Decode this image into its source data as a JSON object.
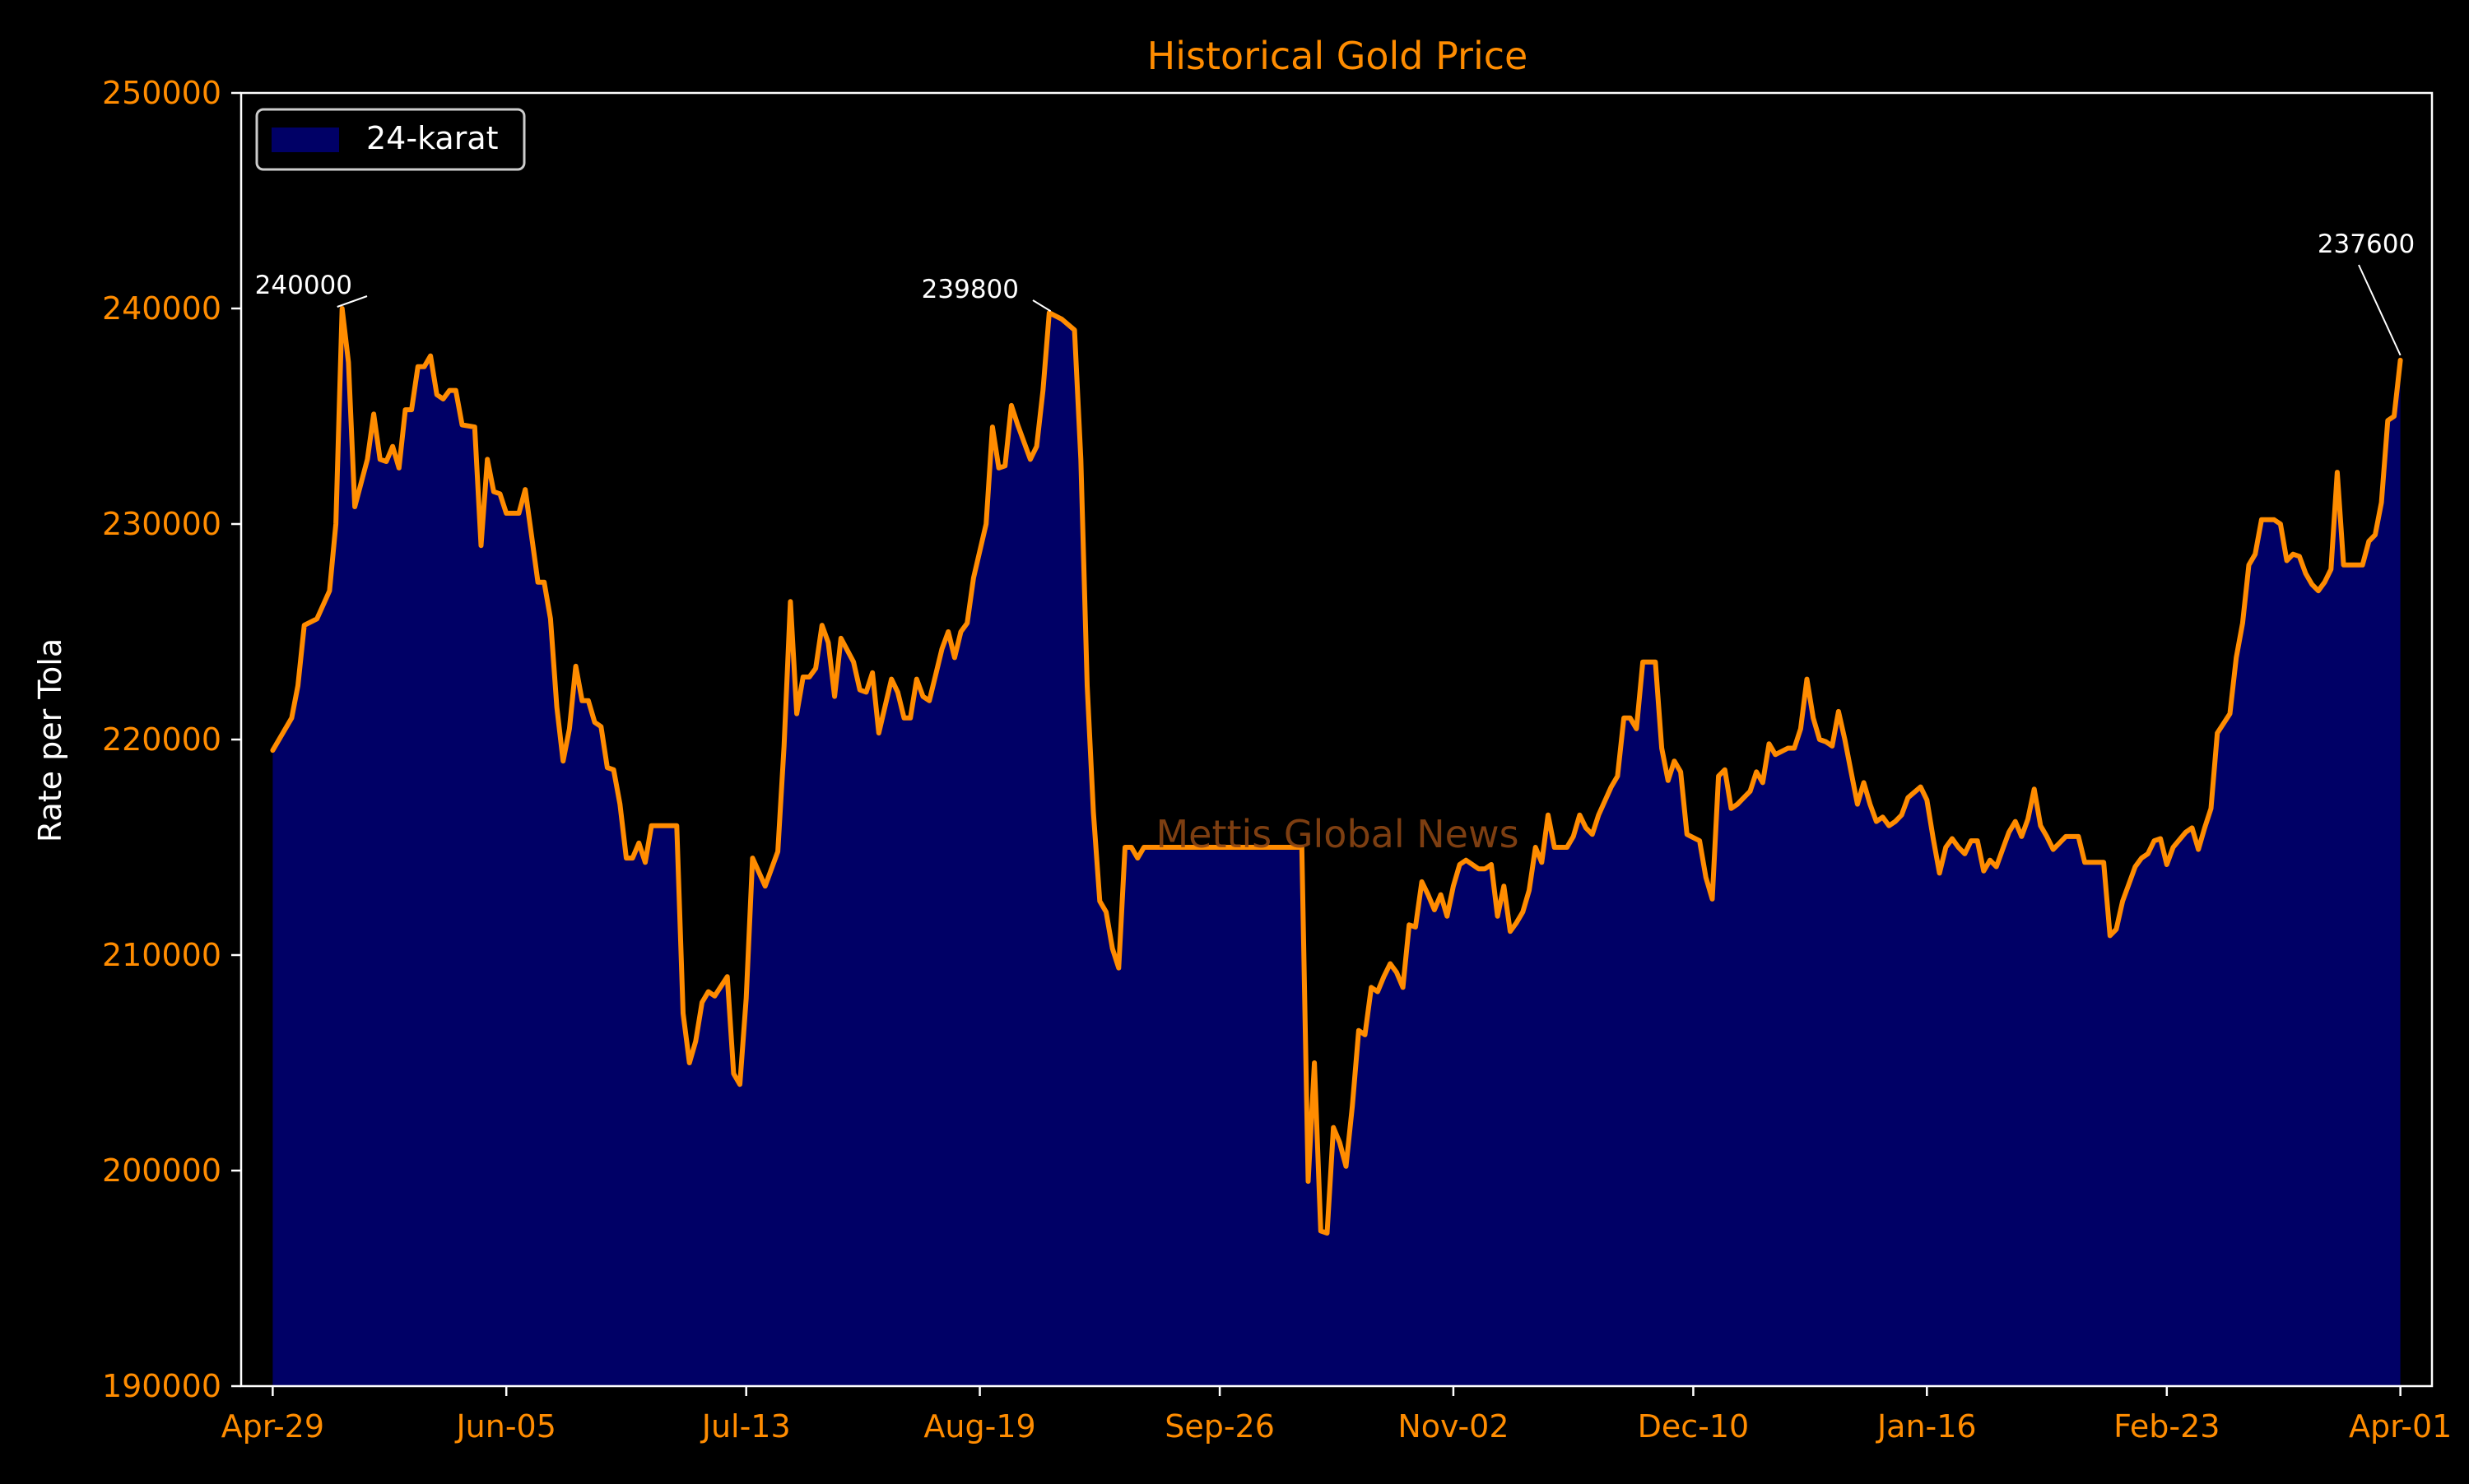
{
  "chart_data": {
    "type": "area",
    "title": "Historical Gold Price",
    "xlabel": "",
    "ylabel": "Rate per Tola",
    "watermark": "Mettis Global News",
    "ylim": [
      190000,
      250000
    ],
    "yticks": [
      190000,
      200000,
      210000,
      220000,
      230000,
      240000,
      250000
    ],
    "ytick_labels": [
      "190000",
      "200000",
      "210000",
      "220000",
      "230000",
      "240000",
      "250000"
    ],
    "xlim_days": [
      -5,
      342
    ],
    "xticks": [
      {
        "label": "Apr-29",
        "day": 0
      },
      {
        "label": "Jun-05",
        "day": 37
      },
      {
        "label": "Jul-13",
        "day": 75
      },
      {
        "label": "Aug-19",
        "day": 112
      },
      {
        "label": "Sep-26",
        "day": 150
      },
      {
        "label": "Nov-02",
        "day": 187
      },
      {
        "label": "Dec-10",
        "day": 225
      },
      {
        "label": "Jan-16",
        "day": 262
      },
      {
        "label": "Feb-23",
        "day": 300
      },
      {
        "label": "Apr-01",
        "day": 337
      }
    ],
    "legend": {
      "position": "top-left",
      "entries": [
        "24-karat"
      ]
    },
    "grid": false,
    "colors": {
      "line": "#FF8C00",
      "fill": "#000066",
      "text": "#FF8C00",
      "label_text": "#FFFFFF",
      "axes": "#FFFFFF",
      "background": "#000000",
      "watermark": "#8B4513"
    },
    "annotations": [
      {
        "text": "240000",
        "day": 11,
        "value": 240000
      },
      {
        "text": "239800",
        "day": 124,
        "value": 239800
      },
      {
        "text": "237600",
        "day": 337,
        "value": 237600
      }
    ],
    "series": [
      {
        "name": "24-karat",
        "points": [
          [
            0,
            219500
          ],
          [
            3,
            221000
          ],
          [
            4,
            222500
          ],
          [
            5,
            225300
          ],
          [
            7,
            225600
          ],
          [
            9,
            226900
          ],
          [
            10,
            230000
          ],
          [
            11,
            240000
          ],
          [
            12,
            237500
          ],
          [
            13,
            230800
          ],
          [
            15,
            233000
          ],
          [
            16,
            235100
          ],
          [
            17,
            233000
          ],
          [
            18,
            232900
          ],
          [
            19,
            233600
          ],
          [
            20,
            232600
          ],
          [
            21,
            235300
          ],
          [
            22,
            235300
          ],
          [
            23,
            237300
          ],
          [
            24,
            237300
          ],
          [
            25,
            237800
          ],
          [
            26,
            236000
          ],
          [
            27,
            235800
          ],
          [
            28,
            236200
          ],
          [
            29,
            236200
          ],
          [
            30,
            234600
          ],
          [
            32,
            234500
          ],
          [
            33,
            229000
          ],
          [
            34,
            233000
          ],
          [
            35,
            231500
          ],
          [
            36,
            231400
          ],
          [
            37,
            230500
          ],
          [
            39,
            230500
          ],
          [
            40,
            231600
          ],
          [
            42,
            227300
          ],
          [
            43,
            227300
          ],
          [
            44,
            225600
          ],
          [
            45,
            221500
          ],
          [
            46,
            219000
          ],
          [
            47,
            220500
          ],
          [
            48,
            223400
          ],
          [
            49,
            221800
          ],
          [
            50,
            221800
          ],
          [
            51,
            220800
          ],
          [
            52,
            220600
          ],
          [
            53,
            218700
          ],
          [
            54,
            218600
          ],
          [
            55,
            217000
          ],
          [
            56,
            214500
          ],
          [
            57,
            214500
          ],
          [
            58,
            215200
          ],
          [
            59,
            214300
          ],
          [
            60,
            216000
          ],
          [
            64,
            216000
          ],
          [
            65,
            207300
          ],
          [
            66,
            205000
          ],
          [
            67,
            206000
          ],
          [
            68,
            207800
          ],
          [
            69,
            208300
          ],
          [
            70,
            208100
          ],
          [
            72,
            209000
          ],
          [
            73,
            204500
          ],
          [
            74,
            204000
          ],
          [
            75,
            208000
          ],
          [
            76,
            214500
          ],
          [
            78,
            213200
          ],
          [
            80,
            214800
          ],
          [
            81,
            219700
          ],
          [
            82,
            226400
          ],
          [
            83,
            221200
          ],
          [
            84,
            222900
          ],
          [
            85,
            222900
          ],
          [
            86,
            223300
          ],
          [
            87,
            225300
          ],
          [
            88,
            224500
          ],
          [
            89,
            222000
          ],
          [
            90,
            224700
          ],
          [
            92,
            223600
          ],
          [
            93,
            222300
          ],
          [
            94,
            222200
          ],
          [
            95,
            223100
          ],
          [
            96,
            220300
          ],
          [
            98,
            222800
          ],
          [
            99,
            222200
          ],
          [
            100,
            221000
          ],
          [
            101,
            221000
          ],
          [
            102,
            222800
          ],
          [
            103,
            222000
          ],
          [
            104,
            221800
          ],
          [
            105,
            223000
          ],
          [
            106,
            224200
          ],
          [
            107,
            225000
          ],
          [
            108,
            223800
          ],
          [
            109,
            225000
          ],
          [
            110,
            225400
          ],
          [
            111,
            227500
          ],
          [
            113,
            230000
          ],
          [
            114,
            234500
          ],
          [
            115,
            232600
          ],
          [
            116,
            232700
          ],
          [
            117,
            235500
          ],
          [
            118,
            234600
          ],
          [
            120,
            233000
          ],
          [
            121,
            233600
          ],
          [
            122,
            236200
          ],
          [
            123,
            239800
          ],
          [
            125,
            239500
          ],
          [
            127,
            239000
          ],
          [
            128,
            233000
          ],
          [
            129,
            222500
          ],
          [
            130,
            216600
          ],
          [
            131,
            212500
          ],
          [
            132,
            212000
          ],
          [
            133,
            210300
          ],
          [
            134,
            209400
          ],
          [
            135,
            215000
          ],
          [
            136,
            215000
          ],
          [
            137,
            214500
          ],
          [
            138,
            215000
          ],
          [
            150,
            215000
          ],
          [
            163,
            215000
          ],
          [
            164,
            199500
          ],
          [
            165,
            205000
          ],
          [
            166,
            197200
          ],
          [
            167,
            197100
          ],
          [
            168,
            202000
          ],
          [
            169,
            201300
          ],
          [
            170,
            200200
          ],
          [
            171,
            203000
          ],
          [
            172,
            206500
          ],
          [
            173,
            206300
          ],
          [
            174,
            208500
          ],
          [
            175,
            208300
          ],
          [
            176,
            209000
          ],
          [
            177,
            209600
          ],
          [
            178,
            209200
          ],
          [
            179,
            208500
          ],
          [
            180,
            211400
          ],
          [
            181,
            211300
          ],
          [
            182,
            213400
          ],
          [
            183,
            212800
          ],
          [
            184,
            212100
          ],
          [
            185,
            212800
          ],
          [
            186,
            211800
          ],
          [
            187,
            213200
          ],
          [
            188,
            214200
          ],
          [
            189,
            214400
          ],
          [
            191,
            214000
          ],
          [
            192,
            214000
          ],
          [
            193,
            214200
          ],
          [
            194,
            211800
          ],
          [
            195,
            213200
          ],
          [
            196,
            211100
          ],
          [
            197,
            211500
          ],
          [
            198,
            212000
          ],
          [
            199,
            213000
          ],
          [
            200,
            215000
          ],
          [
            201,
            214300
          ],
          [
            202,
            216500
          ],
          [
            203,
            215000
          ],
          [
            205,
            215000
          ],
          [
            206,
            215500
          ],
          [
            207,
            216500
          ],
          [
            208,
            215900
          ],
          [
            209,
            215600
          ],
          [
            210,
            216500
          ],
          [
            212,
            217800
          ],
          [
            213,
            218300
          ],
          [
            214,
            221000
          ],
          [
            215,
            221000
          ],
          [
            216,
            220500
          ],
          [
            217,
            223600
          ],
          [
            219,
            223600
          ],
          [
            220,
            219600
          ],
          [
            221,
            218100
          ],
          [
            222,
            219000
          ],
          [
            223,
            218500
          ],
          [
            224,
            215600
          ],
          [
            226,
            215300
          ],
          [
            227,
            213600
          ],
          [
            228,
            212600
          ],
          [
            229,
            218300
          ],
          [
            230,
            218600
          ],
          [
            231,
            216800
          ],
          [
            232,
            217000
          ],
          [
            233,
            217300
          ],
          [
            234,
            217600
          ],
          [
            235,
            218500
          ],
          [
            236,
            218000
          ],
          [
            237,
            219800
          ],
          [
            238,
            219300
          ],
          [
            240,
            219600
          ],
          [
            241,
            219600
          ],
          [
            242,
            220500
          ],
          [
            243,
            222800
          ],
          [
            244,
            221000
          ],
          [
            245,
            220000
          ],
          [
            246,
            219900
          ],
          [
            247,
            219700
          ],
          [
            248,
            221300
          ],
          [
            249,
            220000
          ],
          [
            250,
            218500
          ],
          [
            251,
            217000
          ],
          [
            252,
            218000
          ],
          [
            253,
            217000
          ],
          [
            254,
            216200
          ],
          [
            255,
            216400
          ],
          [
            256,
            216000
          ],
          [
            257,
            216200
          ],
          [
            258,
            216500
          ],
          [
            259,
            217300
          ],
          [
            261,
            217800
          ],
          [
            262,
            217200
          ],
          [
            263,
            215400
          ],
          [
            264,
            213800
          ],
          [
            265,
            215000
          ],
          [
            266,
            215400
          ],
          [
            267,
            215000
          ],
          [
            268,
            214700
          ],
          [
            269,
            215300
          ],
          [
            270,
            215300
          ],
          [
            271,
            213900
          ],
          [
            272,
            214400
          ],
          [
            273,
            214100
          ],
          [
            274,
            214900
          ],
          [
            275,
            215700
          ],
          [
            276,
            216200
          ],
          [
            277,
            215500
          ],
          [
            278,
            216300
          ],
          [
            279,
            217700
          ],
          [
            280,
            216000
          ],
          [
            281,
            215500
          ],
          [
            282,
            214900
          ],
          [
            283,
            215200
          ],
          [
            284,
            215500
          ],
          [
            285,
            215500
          ],
          [
            286,
            215500
          ],
          [
            287,
            214300
          ],
          [
            290,
            214300
          ],
          [
            291,
            210900
          ],
          [
            292,
            211200
          ],
          [
            293,
            212500
          ],
          [
            294,
            213300
          ],
          [
            295,
            214100
          ],
          [
            296,
            214500
          ],
          [
            297,
            214700
          ],
          [
            298,
            215300
          ],
          [
            299,
            215400
          ],
          [
            300,
            214200
          ],
          [
            301,
            215000
          ],
          [
            303,
            215700
          ],
          [
            304,
            215900
          ],
          [
            305,
            214900
          ],
          [
            306,
            215900
          ],
          [
            307,
            216800
          ],
          [
            308,
            220300
          ],
          [
            310,
            221200
          ],
          [
            311,
            223800
          ],
          [
            312,
            225400
          ],
          [
            313,
            228100
          ],
          [
            314,
            228600
          ],
          [
            315,
            230200
          ],
          [
            317,
            230200
          ],
          [
            318,
            230000
          ],
          [
            319,
            228300
          ],
          [
            320,
            228600
          ],
          [
            321,
            228500
          ],
          [
            322,
            227700
          ],
          [
            323,
            227200
          ],
          [
            324,
            226900
          ],
          [
            325,
            227300
          ],
          [
            326,
            227900
          ],
          [
            327,
            232400
          ],
          [
            328,
            228100
          ],
          [
            331,
            228100
          ],
          [
            332,
            229200
          ],
          [
            333,
            229500
          ],
          [
            334,
            231000
          ],
          [
            335,
            234800
          ],
          [
            336,
            235000
          ],
          [
            337,
            237600
          ]
        ]
      }
    ]
  }
}
